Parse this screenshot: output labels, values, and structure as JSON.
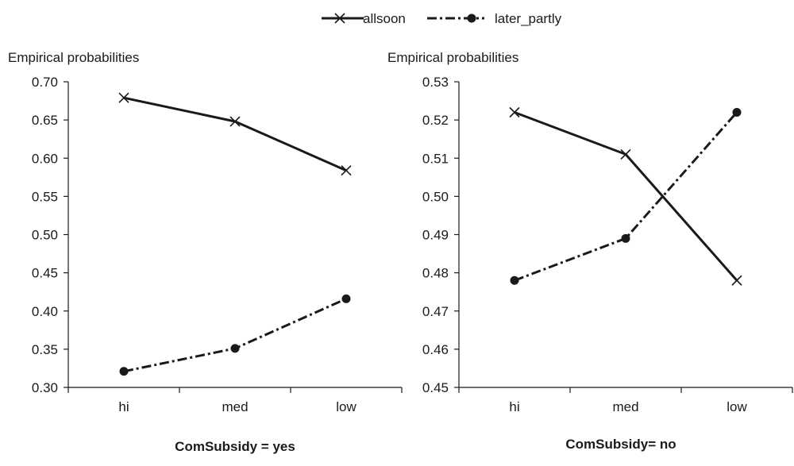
{
  "chart_data": [
    {
      "type": "line",
      "title": "ComSubsidy = yes",
      "ylabel": "Empirical probabilities",
      "xlabel": "",
      "categories": [
        "hi",
        "med",
        "low"
      ],
      "ylim": [
        0.3,
        0.7
      ],
      "yticks": [
        0.3,
        0.35,
        0.4,
        0.45,
        0.5,
        0.55,
        0.6,
        0.65,
        0.7
      ],
      "ytick_labels": [
        "0.30",
        "0.35",
        "0.40",
        "0.45",
        "0.50",
        "0.55",
        "0.60",
        "0.65",
        "0.70"
      ],
      "grid": false,
      "series": [
        {
          "name": "allsoon",
          "values": [
            0.679,
            0.648,
            0.584
          ],
          "style": "solid",
          "marker": "x"
        },
        {
          "name": "later_partly",
          "values": [
            0.321,
            0.351,
            0.416
          ],
          "style": "dashdot",
          "marker": "circle"
        }
      ]
    },
    {
      "type": "line",
      "title": "ComSubsidy= no",
      "ylabel": "Empirical probabilities",
      "xlabel": "",
      "categories": [
        "hi",
        "med",
        "low"
      ],
      "ylim": [
        0.45,
        0.53
      ],
      "yticks": [
        0.45,
        0.46,
        0.47,
        0.48,
        0.49,
        0.5,
        0.51,
        0.52,
        0.53
      ],
      "ytick_labels": [
        "0.45",
        "0.46",
        "0.47",
        "0.48",
        "0.49",
        "0.50",
        "0.51",
        "0.52",
        "0.53"
      ],
      "grid": false,
      "series": [
        {
          "name": "allsoon",
          "values": [
            0.522,
            0.511,
            0.478
          ],
          "style": "solid",
          "marker": "x"
        },
        {
          "name": "later_partly",
          "values": [
            0.478,
            0.489,
            0.522
          ],
          "style": "dashdot",
          "marker": "circle"
        }
      ]
    }
  ],
  "legend": {
    "placement": "top-center",
    "items": [
      {
        "label": "allsoon",
        "style": "solid",
        "marker": "x"
      },
      {
        "label": "later_partly",
        "style": "dashdot",
        "marker": "circle"
      }
    ]
  },
  "colors": {
    "line": "#1a1a1a",
    "background": "#ffffff"
  }
}
